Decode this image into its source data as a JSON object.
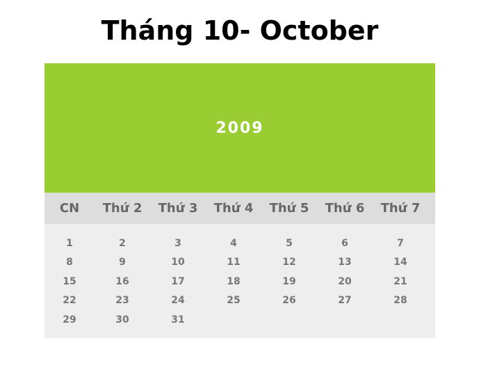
{
  "title": "Tháng 10- October",
  "calendar": {
    "year": "2009",
    "weekdays": [
      "CN",
      "Thứ 2",
      "Thứ 3",
      "Thứ 4",
      "Thứ 5",
      "Thứ 6",
      "Thứ 7"
    ],
    "weeks": [
      [
        "1",
        "2",
        "3",
        "4",
        "5",
        "6",
        "7"
      ],
      [
        "8",
        "9",
        "10",
        "11",
        "12",
        "13",
        "14"
      ],
      [
        "15",
        "16",
        "17",
        "18",
        "19",
        "20",
        "21"
      ],
      [
        "22",
        "23",
        "24",
        "25",
        "26",
        "27",
        "28"
      ],
      [
        "29",
        "30",
        "31",
        "",
        "",
        "",
        ""
      ]
    ]
  },
  "colors": {
    "header_bg": "#9acd32",
    "weekday_bg": "#dddddd",
    "days_bg": "#eeeeee",
    "weekday_text": "#666666",
    "day_text": "#777777"
  }
}
